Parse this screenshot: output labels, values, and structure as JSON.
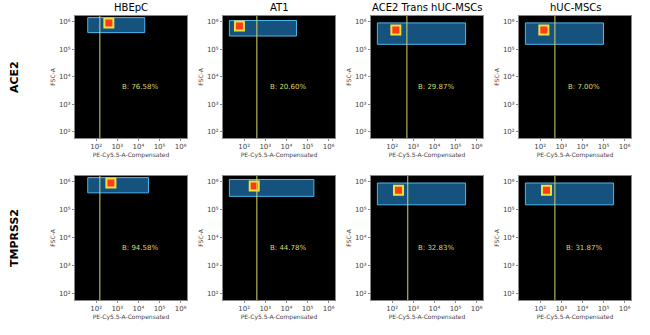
{
  "column_titles": [
    "HBEpC",
    "AT1",
    "ACE2 Trans hUC-MSCs",
    "hUC-MSCs"
  ],
  "row_labels": [
    "ACE2",
    "TMPRSS2"
  ],
  "chart_data": [
    {
      "type": "scatter",
      "log": true,
      "x_label": "PE-Cy5.5-A-Compensated",
      "y_label": "FSC-A",
      "xlim": [
        10,
        2000000
      ],
      "ylim": [
        60,
        1600000
      ],
      "xticks": [
        {
          "value": 100,
          "label": "10²"
        },
        {
          "value": 1000,
          "label": "10³"
        },
        {
          "value": 10000,
          "label": "10⁴"
        },
        {
          "value": 100000,
          "label": "10⁵"
        },
        {
          "value": 1000000,
          "label": "10⁶"
        }
      ],
      "yticks": [
        {
          "value": 100,
          "label": "10²"
        },
        {
          "value": 1000,
          "label": "10³"
        },
        {
          "value": 10000,
          "label": "10⁴"
        },
        {
          "value": 100000,
          "label": "10⁵"
        },
        {
          "value": 1000000,
          "label": "10⁶"
        }
      ],
      "gate_x": 150,
      "gate_label": "B: 76.58%",
      "cloud": {
        "x": [
          40,
          20000
        ],
        "y": [
          400000,
          1400000
        ]
      },
      "peak": {
        "x": 400,
        "y": 900000
      }
    },
    {
      "type": "scatter",
      "log": true,
      "x_label": "PE-Cy5.5-A-Compensated",
      "y_label": "FSC-A",
      "xlim": [
        10,
        2000000
      ],
      "ylim": [
        60,
        1600000
      ],
      "xticks": [
        {
          "value": 100,
          "label": "10²"
        },
        {
          "value": 1000,
          "label": "10³"
        },
        {
          "value": 10000,
          "label": "10⁴"
        },
        {
          "value": 100000,
          "label": "10⁵"
        },
        {
          "value": 1000000,
          "label": "10⁶"
        }
      ],
      "yticks": [
        {
          "value": 100,
          "label": "10²"
        },
        {
          "value": 1000,
          "label": "10³"
        },
        {
          "value": 10000,
          "label": "10⁴"
        },
        {
          "value": 100000,
          "label": "10⁵"
        },
        {
          "value": 1000000,
          "label": "10⁶"
        }
      ],
      "gate_x": 400,
      "gate_label": "B: 20.60%",
      "cloud": {
        "x": [
          20,
          30000
        ],
        "y": [
          300000,
          1100000
        ]
      },
      "peak": {
        "x": 60,
        "y": 700000
      }
    },
    {
      "type": "scatter",
      "log": true,
      "x_label": "PE-Cy5.5-A-Compensated",
      "y_label": "FSC-A",
      "xlim": [
        10,
        2000000
      ],
      "ylim": [
        60,
        1600000
      ],
      "xticks": [
        {
          "value": 100,
          "label": "10²"
        },
        {
          "value": 1000,
          "label": "10³"
        },
        {
          "value": 10000,
          "label": "10⁴"
        },
        {
          "value": 100000,
          "label": "10⁵"
        },
        {
          "value": 1000000,
          "label": "10⁶"
        }
      ],
      "yticks": [
        {
          "value": 100,
          "label": "10²"
        },
        {
          "value": 1000,
          "label": "10³"
        },
        {
          "value": 10000,
          "label": "10⁴"
        },
        {
          "value": 100000,
          "label": "10⁵"
        },
        {
          "value": 1000000,
          "label": "10⁶"
        }
      ],
      "gate_x": 500,
      "gate_label": "B: 29.87%",
      "cloud": {
        "x": [
          20,
          300000
        ],
        "y": [
          150000,
          900000
        ]
      },
      "peak": {
        "x": 150,
        "y": 500000
      }
    },
    {
      "type": "scatter",
      "log": true,
      "x_label": "PE-Cy5.5-A-Compensated",
      "y_label": "FSC-A",
      "xlim": [
        10,
        2000000
      ],
      "ylim": [
        60,
        1600000
      ],
      "xticks": [
        {
          "value": 100,
          "label": "10²"
        },
        {
          "value": 1000,
          "label": "10³"
        },
        {
          "value": 10000,
          "label": "10⁴"
        },
        {
          "value": 100000,
          "label": "10⁵"
        },
        {
          "value": 1000000,
          "label": "10⁶"
        }
      ],
      "yticks": [
        {
          "value": 100,
          "label": "10²"
        },
        {
          "value": 1000,
          "label": "10³"
        },
        {
          "value": 10000,
          "label": "10⁴"
        },
        {
          "value": 100000,
          "label": "10⁵"
        },
        {
          "value": 1000000,
          "label": "10⁶"
        }
      ],
      "gate_x": 500,
      "gate_label": "B: 7.00%",
      "cloud": {
        "x": [
          20,
          100000
        ],
        "y": [
          150000,
          900000
        ]
      },
      "peak": {
        "x": 150,
        "y": 500000
      }
    },
    {
      "type": "scatter",
      "log": true,
      "x_label": "PE-Cy5.5-A-Compensated",
      "y_label": "FSC-A",
      "xlim": [
        10,
        2000000
      ],
      "ylim": [
        60,
        1600000
      ],
      "xticks": [
        {
          "value": 100,
          "label": "10²"
        },
        {
          "value": 1000,
          "label": "10³"
        },
        {
          "value": 10000,
          "label": "10⁴"
        },
        {
          "value": 100000,
          "label": "10⁵"
        },
        {
          "value": 1000000,
          "label": "10⁶"
        }
      ],
      "yticks": [
        {
          "value": 100,
          "label": "10²"
        },
        {
          "value": 1000,
          "label": "10³"
        },
        {
          "value": 10000,
          "label": "10⁴"
        },
        {
          "value": 100000,
          "label": "10⁵"
        },
        {
          "value": 1000000,
          "label": "10⁶"
        }
      ],
      "gate_x": 150,
      "gate_label": "B: 94.58%",
      "cloud": {
        "x": [
          40,
          30000
        ],
        "y": [
          400000,
          1400000
        ]
      },
      "peak": {
        "x": 500,
        "y": 900000
      }
    },
    {
      "type": "scatter",
      "log": true,
      "x_label": "PE-Cy5.5-A-Compensated",
      "y_label": "FSC-A",
      "xlim": [
        10,
        2000000
      ],
      "ylim": [
        60,
        1600000
      ],
      "xticks": [
        {
          "value": 100,
          "label": "10²"
        },
        {
          "value": 1000,
          "label": "10³"
        },
        {
          "value": 10000,
          "label": "10⁴"
        },
        {
          "value": 100000,
          "label": "10⁵"
        },
        {
          "value": 1000000,
          "label": "10⁶"
        }
      ],
      "yticks": [
        {
          "value": 100,
          "label": "10²"
        },
        {
          "value": 1000,
          "label": "10³"
        },
        {
          "value": 10000,
          "label": "10⁴"
        },
        {
          "value": 100000,
          "label": "10⁵"
        },
        {
          "value": 1000000,
          "label": "10⁶"
        }
      ],
      "gate_x": 400,
      "gate_label": "B: 44.78%",
      "cloud": {
        "x": [
          20,
          200000
        ],
        "y": [
          300000,
          1200000
        ]
      },
      "peak": {
        "x": 300,
        "y": 700000
      }
    },
    {
      "type": "scatter",
      "log": true,
      "x_label": "PE-Cy5.5-A-Compensated",
      "y_label": "FSC-A",
      "xlim": [
        10,
        2000000
      ],
      "ylim": [
        60,
        1600000
      ],
      "xticks": [
        {
          "value": 100,
          "label": "10²"
        },
        {
          "value": 1000,
          "label": "10³"
        },
        {
          "value": 10000,
          "label": "10⁴"
        },
        {
          "value": 100000,
          "label": "10⁵"
        },
        {
          "value": 1000000,
          "label": "10⁶"
        }
      ],
      "yticks": [
        {
          "value": 100,
          "label": "10²"
        },
        {
          "value": 1000,
          "label": "10³"
        },
        {
          "value": 10000,
          "label": "10⁴"
        },
        {
          "value": 100000,
          "label": "10⁵"
        },
        {
          "value": 1000000,
          "label": "10⁶"
        }
      ],
      "gate_x": 550,
      "gate_label": "B: 32.83%",
      "cloud": {
        "x": [
          20,
          300000
        ],
        "y": [
          150000,
          900000
        ]
      },
      "peak": {
        "x": 200,
        "y": 500000
      }
    },
    {
      "type": "scatter",
      "log": true,
      "x_label": "PE-Cy5.5-A-Compensated",
      "y_label": "FSC-A",
      "xlim": [
        10,
        2000000
      ],
      "ylim": [
        60,
        1600000
      ],
      "xticks": [
        {
          "value": 100,
          "label": "10²"
        },
        {
          "value": 1000,
          "label": "10³"
        },
        {
          "value": 10000,
          "label": "10⁴"
        },
        {
          "value": 100000,
          "label": "10⁵"
        },
        {
          "value": 1000000,
          "label": "10⁶"
        }
      ],
      "yticks": [
        {
          "value": 100,
          "label": "10²"
        },
        {
          "value": 1000,
          "label": "10³"
        },
        {
          "value": 10000,
          "label": "10⁴"
        },
        {
          "value": 100000,
          "label": "10⁵"
        },
        {
          "value": 1000000,
          "label": "10⁶"
        }
      ],
      "gate_x": 500,
      "gate_label": "B: 31.87%",
      "cloud": {
        "x": [
          20,
          300000
        ],
        "y": [
          150000,
          900000
        ]
      },
      "peak": {
        "x": 200,
        "y": 500000
      }
    }
  ]
}
